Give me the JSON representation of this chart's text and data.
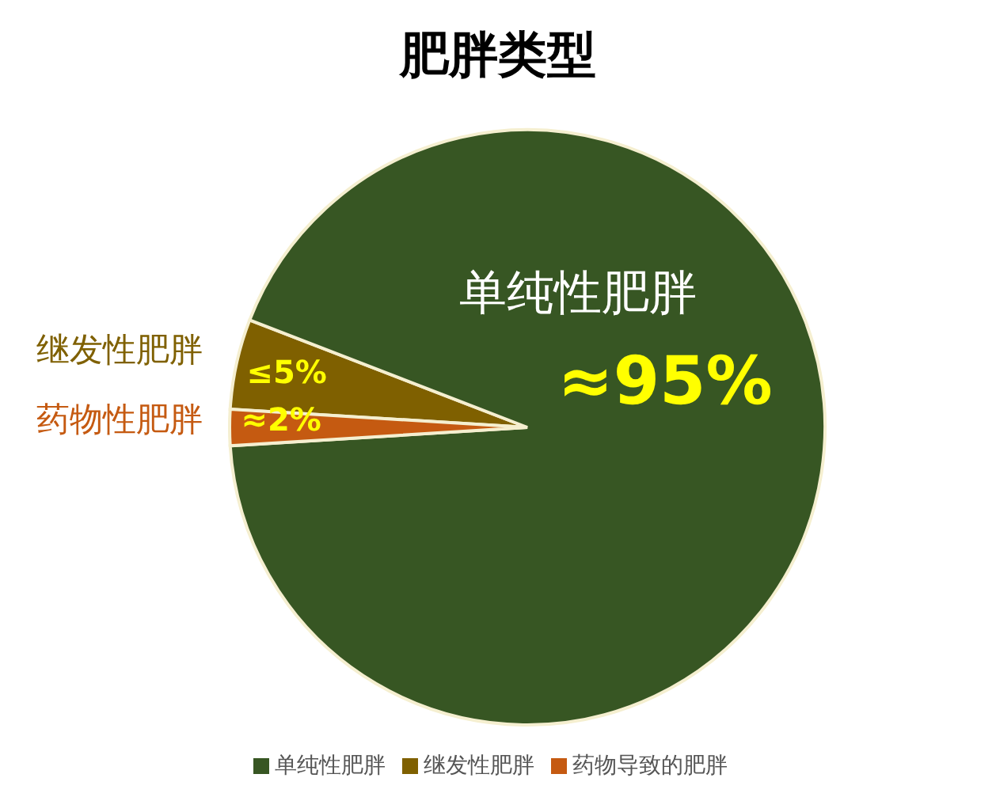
{
  "chart_data": {
    "type": "pie",
    "title": "肥胖类型",
    "categories": [
      "继发性肥胖",
      "单纯性肥胖",
      "药物导致的肥胖"
    ],
    "values": [
      5,
      95,
      2
    ],
    "colors": [
      "#7f6000",
      "#375623",
      "#c55a11"
    ],
    "value_labels": [
      "≤5%",
      "≈95%",
      "≈2%"
    ],
    "annotations": [
      "继发性肥胖",
      "单纯性肥胖",
      "药物性肥胖"
    ],
    "legend": "bottom"
  }
}
